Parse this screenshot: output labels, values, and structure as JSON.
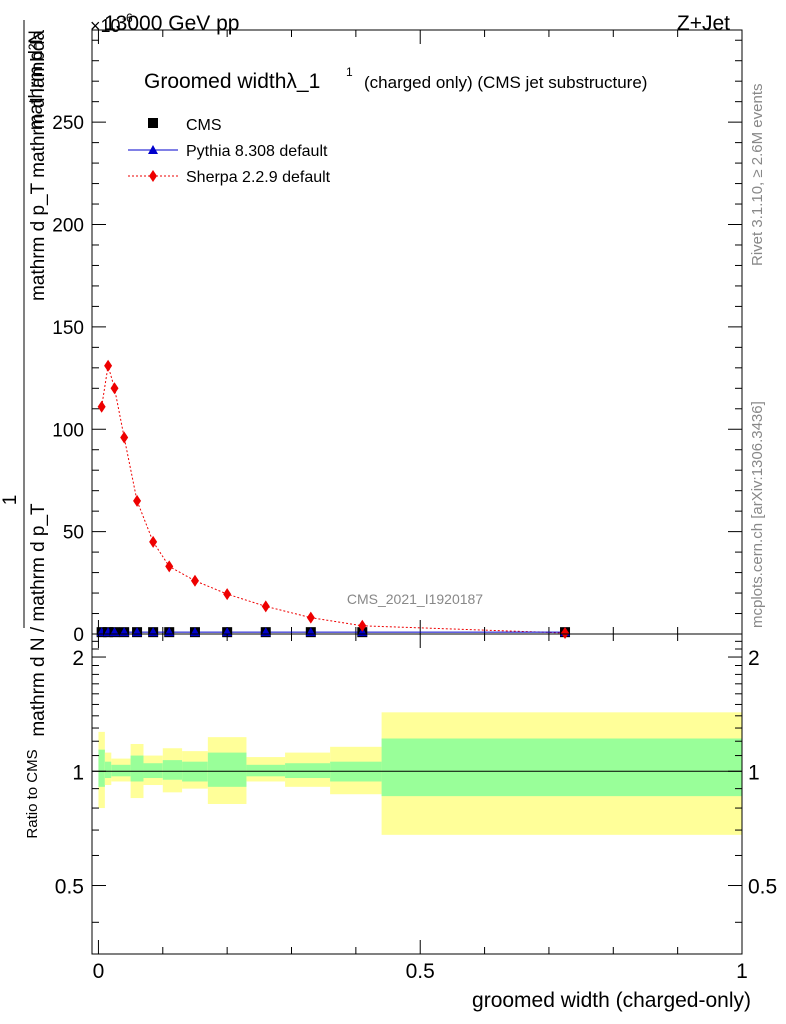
{
  "header": {
    "top_left": "13000 GeV pp",
    "top_right": "Z+Jet",
    "exponent_label": "×10",
    "exponent_power": "-6"
  },
  "side_labels": {
    "rivet": "Rivet 3.1.10, ≥ 2.6M events",
    "mcplots": "mcplots.cern.ch [arXiv:1306.3436]"
  },
  "watermark": "CMS_2021_I1920187",
  "chart_data": [
    {
      "type": "scatter",
      "panel": "main",
      "title": "Groomed widthλ_1",
      "title_superscript": "1",
      "subtitle": "(charged only) (CMS jet substructure)",
      "ylabel_num": "mathrm d²N",
      "ylabel_den": "mathrm d p_T mathrm d lambda",
      "ylabel_lhs_num": "1",
      "ylabel_lhs_den": "mathrm d N / mathrm d p_T",
      "ylim": [
        0,
        295
      ],
      "xlim": [
        -0.01,
        1.0
      ],
      "yticks": [
        0,
        50,
        100,
        150,
        200,
        250
      ],
      "legend_position": "top-left",
      "x": [
        0.005,
        0.015,
        0.025,
        0.04,
        0.06,
        0.085,
        0.11,
        0.15,
        0.2,
        0.26,
        0.33,
        0.41,
        0.725
      ],
      "series": [
        {
          "name": "CMS",
          "color": "#000000",
          "marker": "square",
          "values": [
            0.9,
            0.9,
            0.9,
            0.9,
            0.9,
            0.9,
            0.9,
            0.9,
            0.9,
            0.9,
            0.9,
            0.9,
            0.9
          ]
        },
        {
          "name": "Pythia 8.308 default",
          "color": "#0000cc",
          "marker": "triangle",
          "values": [
            0.9,
            0.9,
            0.9,
            0.9,
            0.9,
            0.9,
            0.9,
            0.9,
            0.9,
            0.9,
            0.9,
            0.9,
            0.9
          ]
        },
        {
          "name": "Sherpa 2.2.9 default",
          "color": "#ee0000",
          "marker": "diamond",
          "values": [
            111,
            131,
            120,
            96,
            65,
            45,
            33,
            26,
            19.5,
            13.5,
            8,
            4,
            0.5
          ]
        }
      ]
    },
    {
      "type": "area",
      "panel": "ratio",
      "ylabel": "Ratio to CMS",
      "xlabel": "groomed width (charged-only)",
      "xlim": [
        -0.01,
        1.0
      ],
      "ylim": [
        0.33,
        2.3
      ],
      "log_y": true,
      "yticks": [
        0.5,
        1,
        2
      ],
      "xticks": [
        0,
        0.5,
        1
      ],
      "reference_line": 1,
      "bins": [
        {
          "x0": 0.0,
          "x1": 0.01,
          "green": [
            0.91,
            1.14
          ],
          "yellow": [
            0.8,
            1.27
          ]
        },
        {
          "x0": 0.01,
          "x1": 0.02,
          "green": [
            0.96,
            1.06
          ],
          "yellow": [
            0.92,
            1.12
          ]
        },
        {
          "x0": 0.02,
          "x1": 0.05,
          "green": [
            0.97,
            1.04
          ],
          "yellow": [
            0.94,
            1.08
          ]
        },
        {
          "x0": 0.05,
          "x1": 0.07,
          "green": [
            0.94,
            1.1
          ],
          "yellow": [
            0.85,
            1.18
          ]
        },
        {
          "x0": 0.07,
          "x1": 0.1,
          "green": [
            0.96,
            1.05
          ],
          "yellow": [
            0.92,
            1.1
          ]
        },
        {
          "x0": 0.1,
          "x1": 0.13,
          "green": [
            0.95,
            1.07
          ],
          "yellow": [
            0.88,
            1.15
          ]
        },
        {
          "x0": 0.13,
          "x1": 0.17,
          "green": [
            0.94,
            1.06
          ],
          "yellow": [
            0.9,
            1.13
          ]
        },
        {
          "x0": 0.17,
          "x1": 0.23,
          "green": [
            0.91,
            1.12
          ],
          "yellow": [
            0.82,
            1.23
          ]
        },
        {
          "x0": 0.23,
          "x1": 0.29,
          "green": [
            0.97,
            1.04
          ],
          "yellow": [
            0.94,
            1.09
          ]
        },
        {
          "x0": 0.29,
          "x1": 0.36,
          "green": [
            0.96,
            1.05
          ],
          "yellow": [
            0.91,
            1.12
          ]
        },
        {
          "x0": 0.36,
          "x1": 0.44,
          "green": [
            0.94,
            1.06
          ],
          "yellow": [
            0.87,
            1.16
          ]
        },
        {
          "x0": 0.44,
          "x1": 1.0,
          "green": [
            0.86,
            1.22
          ],
          "yellow": [
            0.68,
            1.43
          ]
        }
      ],
      "colors": {
        "green": "#99ff99",
        "yellow": "#ffff99"
      }
    }
  ]
}
